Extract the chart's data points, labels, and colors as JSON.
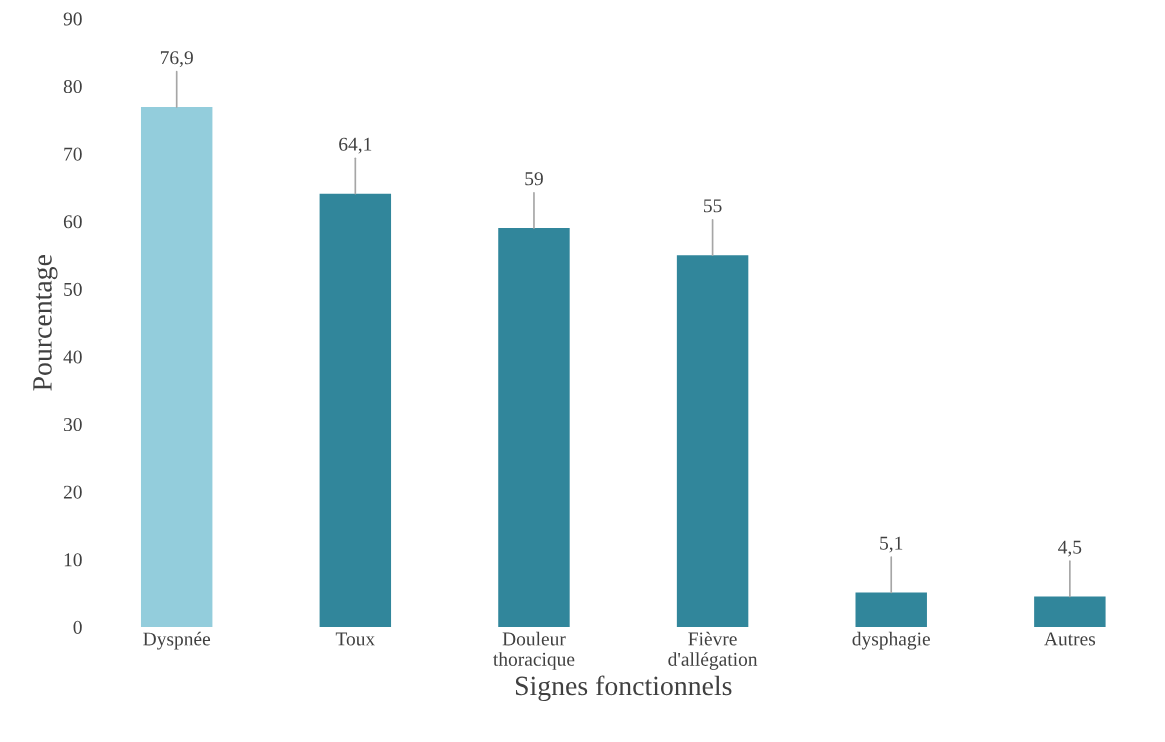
{
  "chart_data": {
    "type": "bar",
    "xlabel": "Signes fonctionnels",
    "ylabel": "Pourcentage",
    "categories": [
      "Dyspnée",
      "Toux",
      "Douleur\nthoracique",
      "Fièvre\nd'allégation",
      "dysphagie",
      "Autres"
    ],
    "values": [
      76.9,
      64.1,
      59,
      55,
      5.1,
      4.5
    ],
    "value_labels": [
      "76,9",
      "64,1",
      "59",
      "55",
      "5,1",
      "4,5"
    ],
    "colors": [
      "#93cddc",
      "#31869b",
      "#31869b",
      "#31869b",
      "#31869b",
      "#31869b"
    ],
    "ylim": [
      0,
      90
    ],
    "yticks": [
      0,
      10,
      20,
      30,
      40,
      50,
      60,
      70,
      80,
      90
    ],
    "grid": false,
    "legend": false
  }
}
